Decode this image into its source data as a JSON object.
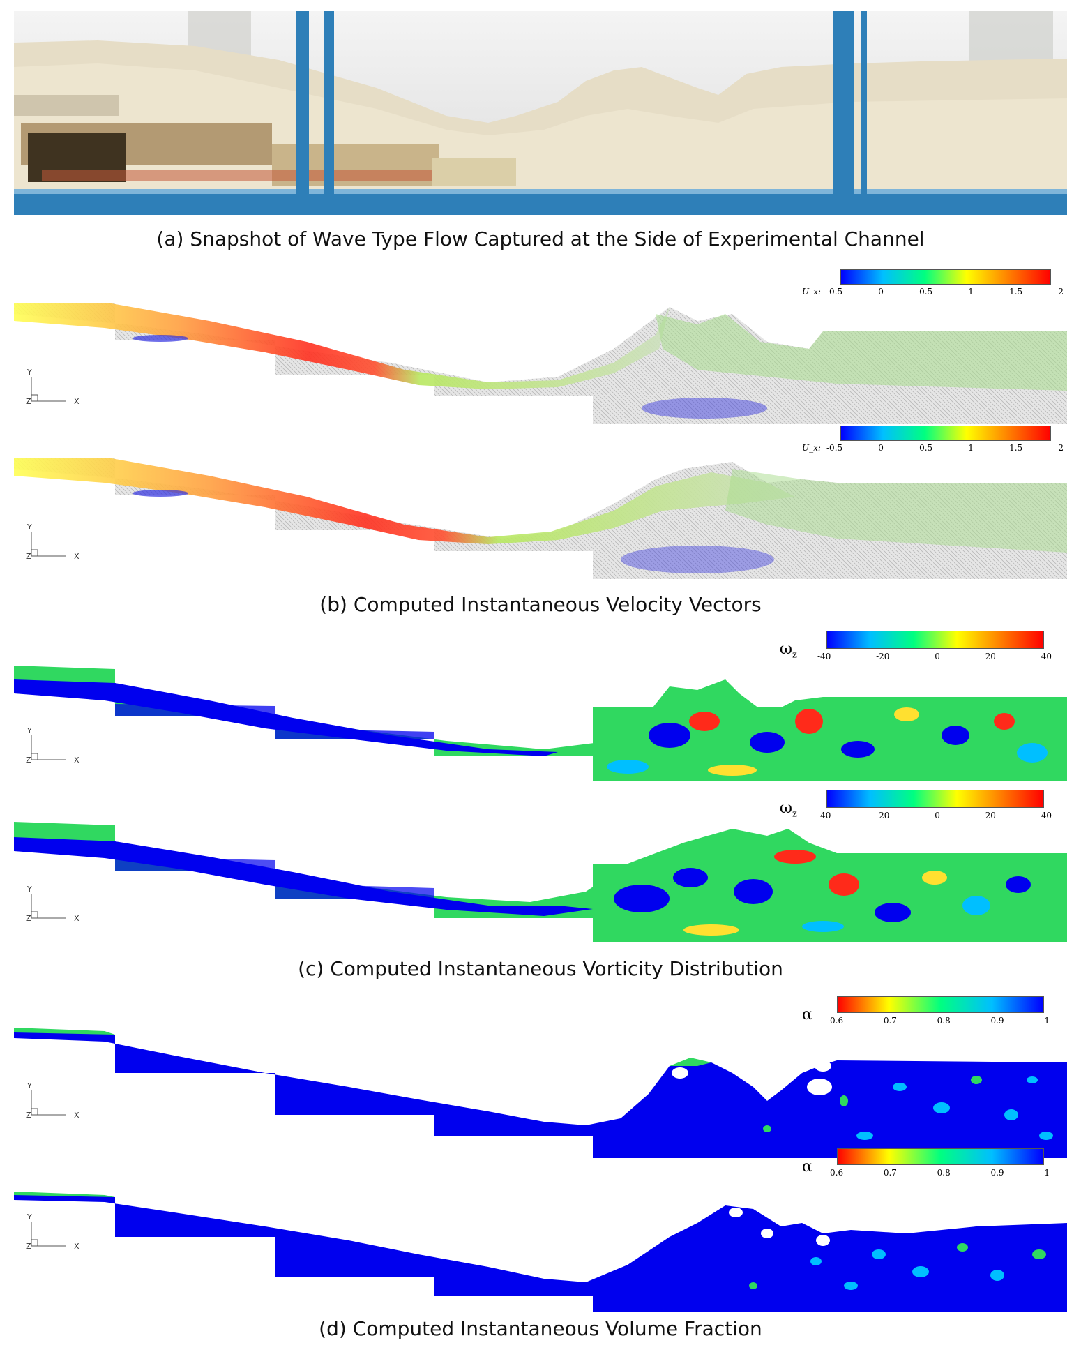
{
  "captions": {
    "a": "(a) Snapshot of Wave Type Flow Captured at the Side of Experimental Channel",
    "b": "(b) Computed Instantaneous Velocity Vectors",
    "c": "(c) Computed Instantaneous Vorticity Distribution",
    "d": "(d) Computed Instantaneous Volume Fraction"
  },
  "axes_labels": {
    "y": "Y",
    "x": "X",
    "z": "Z"
  },
  "colorbars": {
    "velocity": {
      "label": "U_x:",
      "ticks": [
        "-0.5",
        "0",
        "0.5",
        "1",
        "1.5",
        "2"
      ],
      "colors": [
        "#0000ff",
        "#00bfff",
        "#00ff80",
        "#ffff00",
        "#ff8000",
        "#ff0000"
      ]
    },
    "vorticity": {
      "label": "ω",
      "sub": "z",
      "ticks": [
        "-40",
        "-20",
        "0",
        "20",
        "40"
      ],
      "colors": [
        "#0000ff",
        "#00bfff",
        "#00ff80",
        "#ffff00",
        "#ff8000",
        "#ff0000"
      ]
    },
    "volume": {
      "label": "α",
      "ticks": [
        "0.6",
        "0.7",
        "0.8",
        "0.9",
        "1"
      ],
      "colors": [
        "#ff0000",
        "#ffff00",
        "#00ff80",
        "#00bfff",
        "#0000ff"
      ]
    }
  },
  "colors": {
    "water_blue": "#0000ee",
    "mesh_grey": "#c8c8c8",
    "frame_blue": "#2e7fb8"
  }
}
